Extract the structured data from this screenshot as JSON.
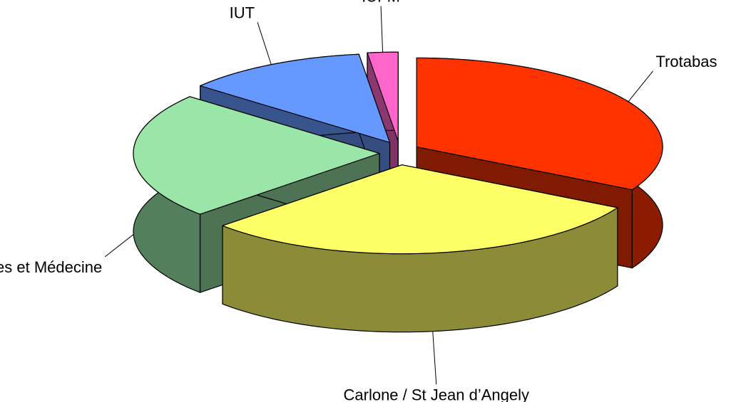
{
  "chart_data": {
    "type": "pie3d",
    "categories": [
      "Trotabas",
      "Carlone / St Jean d’Angely",
      "Sciences et Médecine",
      "IUT",
      "IUFM"
    ],
    "values": [
      33,
      30,
      23,
      12,
      2
    ],
    "colors": [
      "#ff3300",
      "#ffff66",
      "#99e6a8",
      "#6699ff",
      "#ff66cc"
    ]
  }
}
